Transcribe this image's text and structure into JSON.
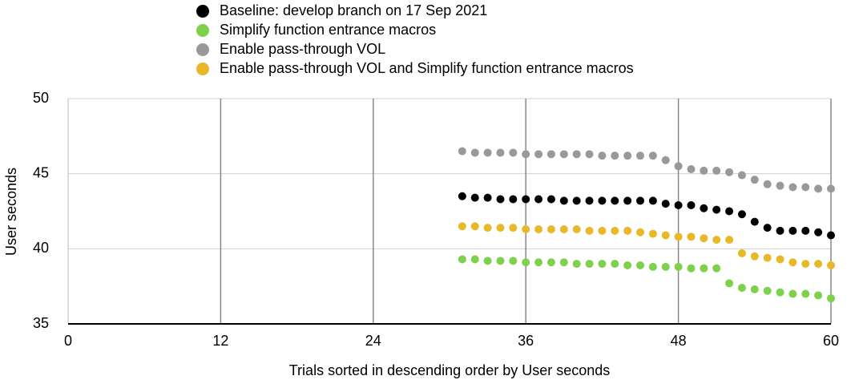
{
  "chart_data": {
    "type": "scatter",
    "x_label": "Trials sorted in descending order by User seconds",
    "y_label": "User seconds",
    "x": [
      31,
      32,
      33,
      34,
      35,
      36,
      37,
      38,
      39,
      40,
      41,
      42,
      43,
      44,
      45,
      46,
      47,
      48,
      49,
      50,
      51,
      52,
      53,
      54,
      55,
      56,
      57,
      58,
      59,
      60
    ],
    "series": [
      {
        "name": "Baseline: develop branch on 17 Sep 2021",
        "color": "#000000",
        "values": [
          43.5,
          43.4,
          43.4,
          43.3,
          43.3,
          43.3,
          43.3,
          43.3,
          43.2,
          43.2,
          43.2,
          43.2,
          43.2,
          43.2,
          43.2,
          43.2,
          43.0,
          42.9,
          42.9,
          42.7,
          42.6,
          42.5,
          42.3,
          41.8,
          41.4,
          41.2,
          41.2,
          41.2,
          41.1,
          40.9
        ]
      },
      {
        "name": "Simplify function entrance macros",
        "color": "#7ed14b",
        "values": [
          39.3,
          39.3,
          39.2,
          39.2,
          39.2,
          39.1,
          39.1,
          39.1,
          39.1,
          39.0,
          39.0,
          39.0,
          39.0,
          38.9,
          38.9,
          38.8,
          38.8,
          38.8,
          38.7,
          38.7,
          38.7,
          37.7,
          37.4,
          37.3,
          37.2,
          37.1,
          37.0,
          37.0,
          36.9,
          36.7
        ]
      },
      {
        "name": "Enable pass-through VOL",
        "color": "#999999",
        "values": [
          46.5,
          46.4,
          46.4,
          46.4,
          46.4,
          46.3,
          46.3,
          46.3,
          46.3,
          46.3,
          46.3,
          46.2,
          46.2,
          46.2,
          46.2,
          46.2,
          45.9,
          45.5,
          45.3,
          45.2,
          45.2,
          45.1,
          44.9,
          44.6,
          44.3,
          44.2,
          44.1,
          44.1,
          44.0,
          44.0
        ]
      },
      {
        "name": "Enable pass-through VOL and Simplify function entrance macros",
        "color": "#e8b829",
        "values": [
          41.5,
          41.5,
          41.4,
          41.4,
          41.4,
          41.3,
          41.3,
          41.3,
          41.3,
          41.3,
          41.2,
          41.2,
          41.2,
          41.2,
          41.1,
          41.0,
          40.9,
          40.8,
          40.8,
          40.7,
          40.6,
          40.6,
          39.7,
          39.5,
          39.4,
          39.3,
          39.1,
          39.0,
          39.0,
          38.9
        ]
      }
    ],
    "xlim": [
      0,
      60
    ],
    "xticks": [
      0,
      12,
      24,
      36,
      48,
      60
    ],
    "ylim": [
      35,
      50
    ],
    "yticks": [
      35,
      40,
      45,
      50
    ],
    "grid": true,
    "legend": "top"
  }
}
